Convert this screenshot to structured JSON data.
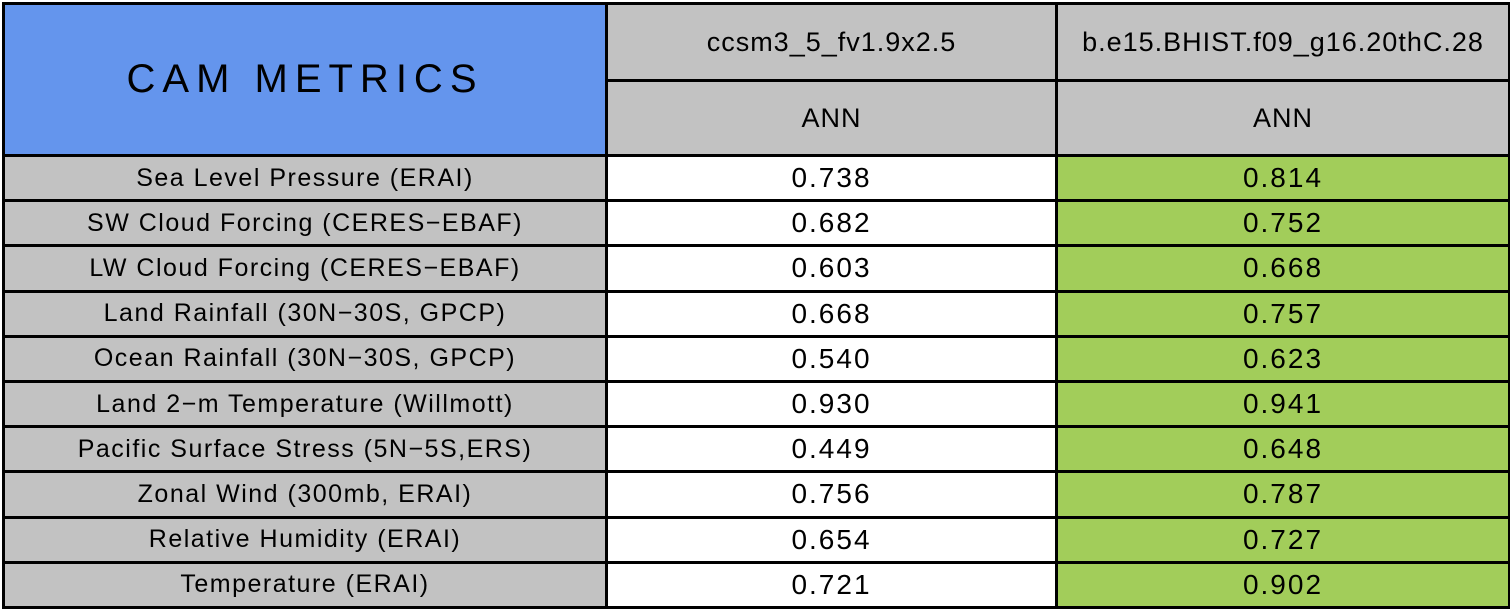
{
  "table": {
    "title": "CAM METRICS",
    "column_headers": [
      "ccsm3_5_fv1.9x2.5",
      "b.e15.BHIST.f09_g16.20thC.28"
    ],
    "season_subheaders": [
      "ANN",
      "ANN"
    ],
    "rows": [
      {
        "metric": "Sea Level Pressure (ERAI)",
        "values": [
          "0.738",
          "0.814"
        ]
      },
      {
        "metric": "SW Cloud Forcing (CERES−EBAF)",
        "values": [
          "0.682",
          "0.752"
        ]
      },
      {
        "metric": "LW Cloud Forcing (CERES−EBAF)",
        "values": [
          "0.603",
          "0.668"
        ]
      },
      {
        "metric": "Land Rainfall (30N−30S, GPCP)",
        "values": [
          "0.668",
          "0.757"
        ]
      },
      {
        "metric": "Ocean Rainfall (30N−30S, GPCP)",
        "values": [
          "0.540",
          "0.623"
        ]
      },
      {
        "metric": "Land 2−m Temperature (Willmott)",
        "values": [
          "0.930",
          "0.941"
        ]
      },
      {
        "metric": "Pacific Surface Stress (5N−5S,ERS)",
        "values": [
          "0.449",
          "0.648"
        ]
      },
      {
        "metric": "Zonal Wind (300mb, ERAI)",
        "values": [
          "0.756",
          "0.787"
        ]
      },
      {
        "metric": "Relative Humidity (ERAI)",
        "values": [
          "0.654",
          "0.727"
        ]
      },
      {
        "metric": "Temperature (ERAI)",
        "values": [
          "0.721",
          "0.902"
        ]
      }
    ]
  },
  "colors": {
    "title_bg": "#6495ED",
    "header_bg": "#C2C2C2",
    "metric_label_bg": "#C2C2C2",
    "value_col1_bg": "#FFFFFF",
    "value_col2_bg": "#A2CD5A",
    "grid_border": "#000000",
    "text": "#000000"
  },
  "chart_data": {
    "type": "table",
    "title": "CAM METRICS",
    "categories": [
      "Sea Level Pressure (ERAI)",
      "SW Cloud Forcing (CERES-EBAF)",
      "LW Cloud Forcing (CERES-EBAF)",
      "Land Rainfall (30N-30S, GPCP)",
      "Ocean Rainfall (30N-30S, GPCP)",
      "Land 2-m Temperature (Willmott)",
      "Pacific Surface Stress (5N-5S,ERS)",
      "Zonal Wind (300mb, ERAI)",
      "Relative Humidity (ERAI)",
      "Temperature (ERAI)"
    ],
    "series": [
      {
        "name": "ccsm3_5_fv1.9x2.5",
        "season": "ANN",
        "values": [
          0.738,
          0.682,
          0.603,
          0.668,
          0.54,
          0.93,
          0.449,
          0.756,
          0.654,
          0.721
        ]
      },
      {
        "name": "b.e15.BHIST.f09_g16.20thC.28",
        "season": "ANN",
        "values": [
          0.814,
          0.752,
          0.668,
          0.757,
          0.623,
          0.941,
          0.648,
          0.787,
          0.727,
          0.902
        ]
      }
    ],
    "layout_hints": "first value column white background, second value column highlighted green; metric labels gray; title cell cornflower blue"
  }
}
